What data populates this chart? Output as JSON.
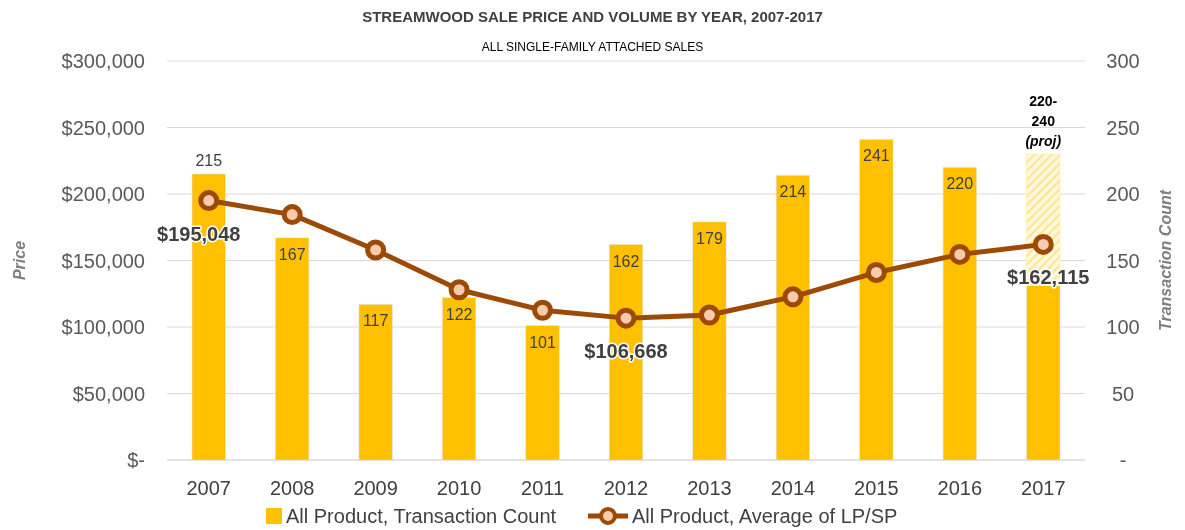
{
  "chart_data": {
    "type": "bar",
    "title": "STREAMWOOD SALE PRICE AND VOLUME BY YEAR, 2007-2017",
    "subtitle": "ALL SINGLE-FAMILY ATTACHED SALES",
    "ylabel": "Price",
    "y2label": "Transaction Count",
    "categories": [
      "2007",
      "2008",
      "2009",
      "2010",
      "2011",
      "2012",
      "2013",
      "2014",
      "2015",
      "2016",
      "2017"
    ],
    "stacked": true,
    "series": [
      {
        "name": "All Product, Transaction Count",
        "axis": "y2",
        "color": "#ffc000",
        "values": [
          215,
          167,
          117,
          122,
          101,
          162,
          179,
          214,
          241,
          220,
          131
        ],
        "value_labels": [
          "215",
          "167",
          "117",
          "122",
          "101",
          "162",
          "179",
          "214",
          "241",
          "220",
          null
        ]
      },
      {
        "axis": "y2",
        "color": "#ffe58f",
        "values": [
          null,
          null,
          null,
          null,
          null,
          null,
          null,
          null,
          null,
          null,
          99
        ],
        "value_labels": [
          null,
          null,
          null,
          null,
          null,
          null,
          null,
          null,
          null,
          null,
          "220-240 (proj)"
        ]
      },
      {
        "name": "All Product, Average of LP/SP",
        "type": "line",
        "axis": "y",
        "color": "#9c4a06",
        "marker": "circle",
        "values": [
          195048,
          184500,
          157900,
          128000,
          112600,
          106668,
          109000,
          122700,
          141000,
          154600,
          162115
        ],
        "value_labels": [
          "$195,048",
          null,
          null,
          null,
          null,
          "$106,668",
          null,
          null,
          null,
          null,
          "$162,115"
        ]
      }
    ],
    "ylim": [
      0,
      300000
    ],
    "yticks": [
      {
        "value": 0,
        "label": "$-"
      },
      {
        "value": 50000,
        "label": "$50,000"
      },
      {
        "value": 100000,
        "label": "$100,000"
      },
      {
        "value": 150000,
        "label": "$150,000"
      },
      {
        "value": 200000,
        "label": "$200,000"
      },
      {
        "value": 250000,
        "label": "$250,000"
      },
      {
        "value": 300000,
        "label": "$300,000"
      }
    ],
    "y2lim": [
      0,
      300
    ],
    "y2ticks": [
      {
        "value": 0,
        "label": "-"
      },
      50,
      100,
      150,
      200,
      250,
      300
    ],
    "grid": "y",
    "legend": "bottom"
  }
}
